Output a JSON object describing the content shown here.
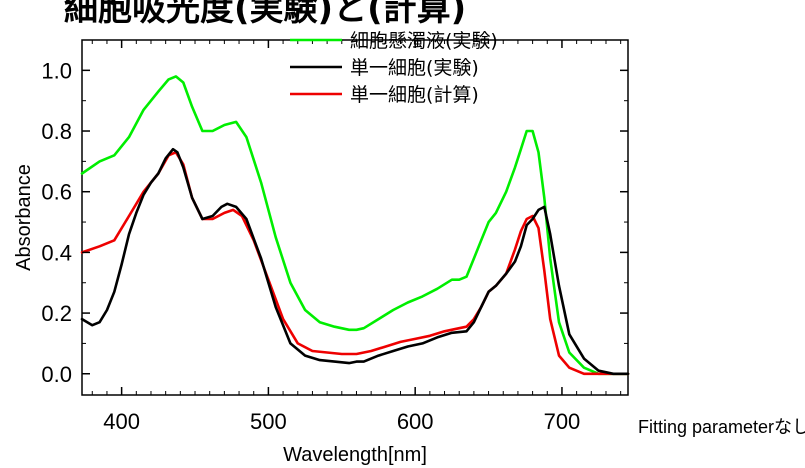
{
  "title": "細胞吸光度(実験)と(計算)",
  "note": "Fitting parameterなし",
  "chart_data": {
    "type": "line",
    "title": "細胞吸光度(実験)と(計算)",
    "xlabel": "Wavelength[nm]",
    "ylabel": "Absorbance",
    "xlim": [
      373,
      745
    ],
    "ylim": [
      -0.07,
      1.1
    ],
    "xticks": [
      400,
      500,
      600,
      700
    ],
    "yticks": [
      0.0,
      0.2,
      0.4,
      0.6,
      0.8,
      1.0
    ],
    "ytick_labels": [
      "0.0",
      "0.2",
      "0.4",
      "0.6",
      "0.8",
      "1.0"
    ],
    "grid": false,
    "legend_position": "top-center",
    "series": [
      {
        "name": "細胞懸濁液(実験)",
        "color": "#00ee00",
        "x": [
          373,
          385,
          395,
          405,
          415,
          425,
          432,
          437,
          442,
          448,
          455,
          462,
          470,
          478,
          485,
          495,
          505,
          515,
          525,
          535,
          545,
          555,
          560,
          565,
          575,
          585,
          595,
          605,
          615,
          625,
          630,
          635,
          640,
          645,
          650,
          655,
          662,
          668,
          672,
          676,
          680,
          684,
          688,
          692,
          698,
          705,
          715,
          725,
          735,
          745
        ],
        "y": [
          0.66,
          0.7,
          0.72,
          0.78,
          0.87,
          0.93,
          0.97,
          0.98,
          0.96,
          0.88,
          0.8,
          0.8,
          0.82,
          0.83,
          0.78,
          0.63,
          0.45,
          0.3,
          0.21,
          0.17,
          0.155,
          0.145,
          0.145,
          0.15,
          0.18,
          0.21,
          0.235,
          0.255,
          0.28,
          0.31,
          0.31,
          0.32,
          0.38,
          0.44,
          0.5,
          0.53,
          0.6,
          0.68,
          0.74,
          0.8,
          0.8,
          0.73,
          0.58,
          0.38,
          0.17,
          0.07,
          0.02,
          0.0,
          0.0,
          0.0
        ]
      },
      {
        "name": "単一細胞(実験)",
        "color": "#000000",
        "x": [
          373,
          380,
          385,
          390,
          395,
          400,
          405,
          410,
          415,
          420,
          425,
          430,
          435,
          438,
          442,
          448,
          455,
          462,
          468,
          472,
          478,
          485,
          495,
          505,
          515,
          525,
          535,
          545,
          555,
          560,
          565,
          575,
          585,
          595,
          605,
          615,
          625,
          635,
          640,
          645,
          650,
          655,
          662,
          668,
          672,
          676,
          680,
          684,
          688,
          692,
          698,
          705,
          715,
          725,
          735,
          745
        ],
        "y": [
          0.18,
          0.16,
          0.17,
          0.21,
          0.27,
          0.36,
          0.46,
          0.53,
          0.59,
          0.63,
          0.66,
          0.71,
          0.74,
          0.73,
          0.68,
          0.58,
          0.51,
          0.52,
          0.55,
          0.56,
          0.55,
          0.51,
          0.38,
          0.22,
          0.1,
          0.06,
          0.045,
          0.04,
          0.035,
          0.04,
          0.04,
          0.06,
          0.075,
          0.09,
          0.1,
          0.12,
          0.135,
          0.14,
          0.17,
          0.22,
          0.27,
          0.29,
          0.33,
          0.37,
          0.42,
          0.49,
          0.51,
          0.54,
          0.55,
          0.46,
          0.29,
          0.13,
          0.05,
          0.01,
          0.0,
          0.0
        ]
      },
      {
        "name": "単一細胞(計算)",
        "color": "#ee0000",
        "x": [
          373,
          385,
          395,
          405,
          415,
          425,
          432,
          437,
          442,
          448,
          455,
          462,
          470,
          476,
          482,
          490,
          500,
          510,
          520,
          530,
          540,
          550,
          560,
          570,
          580,
          590,
          600,
          610,
          620,
          630,
          635,
          640,
          645,
          650,
          655,
          662,
          668,
          672,
          676,
          680,
          684,
          688,
          692,
          698,
          705,
          715,
          725,
          735,
          745
        ],
        "y": [
          0.4,
          0.42,
          0.44,
          0.52,
          0.6,
          0.66,
          0.72,
          0.73,
          0.69,
          0.58,
          0.51,
          0.51,
          0.53,
          0.54,
          0.52,
          0.44,
          0.31,
          0.18,
          0.1,
          0.075,
          0.07,
          0.065,
          0.065,
          0.075,
          0.09,
          0.105,
          0.115,
          0.125,
          0.14,
          0.15,
          0.155,
          0.18,
          0.22,
          0.27,
          0.29,
          0.33,
          0.41,
          0.47,
          0.51,
          0.52,
          0.48,
          0.34,
          0.18,
          0.06,
          0.02,
          0.0,
          0.0,
          0.0,
          0.0
        ]
      }
    ]
  }
}
